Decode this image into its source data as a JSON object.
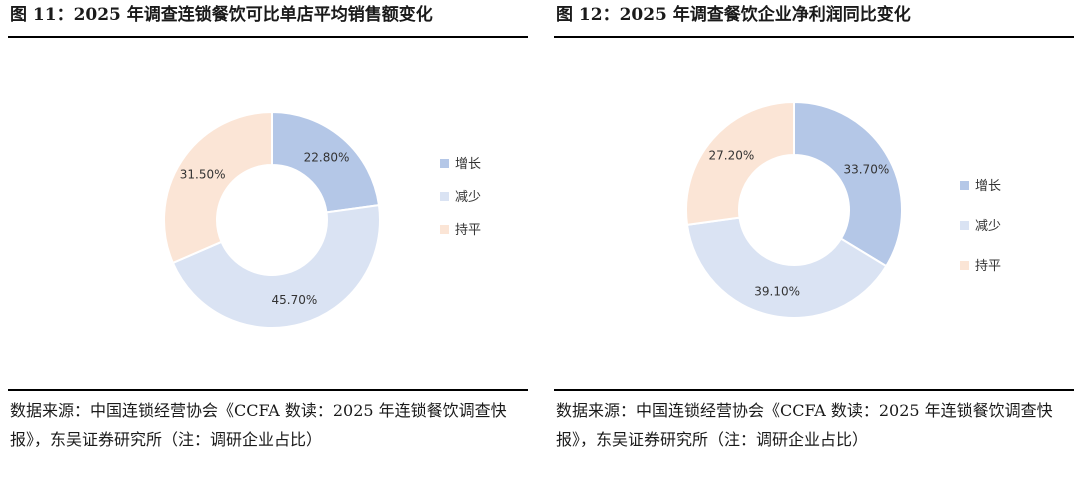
{
  "figures": [
    {
      "title": "图 11：2025 年调查连锁餐饮可比单店平均销售额变化",
      "source": "数据来源：中国连锁经营协会《CCFA 数读：2025 年连锁餐饮调查快报》，东吴证券研究所（注：调研企业占比）"
    },
    {
      "title": "图 12：2025 年调查餐饮企业净利润同比变化",
      "source": "数据来源：中国连锁经营协会《CCFA 数读：2025 年连锁餐饮调查快报》，东吴证券研究所（注：调研企业占比）"
    }
  ],
  "chart_data": [
    {
      "type": "pie",
      "donut": true,
      "legend_position": "right",
      "categories": [
        "增长",
        "减少",
        "持平"
      ],
      "values": [
        22.8,
        45.7,
        31.5
      ],
      "labels": [
        "22.80%",
        "45.70%",
        "31.50%"
      ],
      "colors": [
        "#b4c7e7",
        "#dae3f3",
        "#fbe5d6"
      ]
    },
    {
      "type": "pie",
      "donut": true,
      "legend_position": "right",
      "categories": [
        "增长",
        "减少",
        "持平"
      ],
      "values": [
        33.7,
        39.1,
        27.2
      ],
      "labels": [
        "33.70%",
        "39.10%",
        "27.20%"
      ],
      "colors": [
        "#b4c7e7",
        "#dae3f3",
        "#fbe5d6"
      ]
    }
  ]
}
